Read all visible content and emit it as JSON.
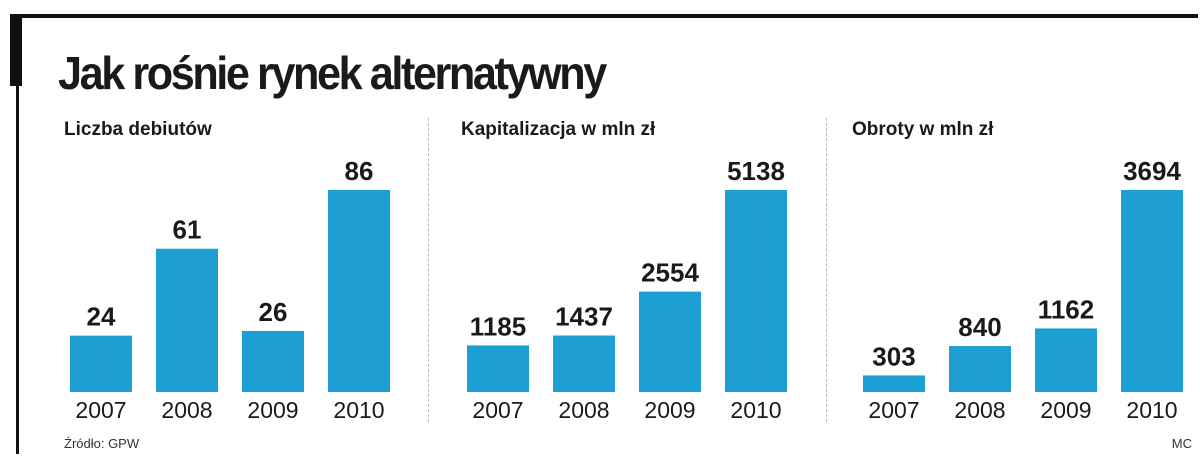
{
  "title": "Jak rośnie rynek alternatywny",
  "colors": {
    "bar": "#1d9fd3",
    "text": "#1a1a1a",
    "frame": "#111111"
  },
  "chart_data": [
    {
      "type": "bar",
      "title": "Liczba debiutów",
      "categories": [
        "2007",
        "2008",
        "2009",
        "2010"
      ],
      "values": [
        24,
        61,
        26,
        86
      ],
      "value_labels": [
        "24",
        "61",
        "26",
        "86"
      ],
      "ylim": [
        0,
        86
      ]
    },
    {
      "type": "bar",
      "title": "Kapitalizacja w mln zł",
      "categories": [
        "2007",
        "2008",
        "2009",
        "2010"
      ],
      "values": [
        1185,
        1437,
        2554,
        5138
      ],
      "value_labels": [
        "1185",
        "1437",
        "2554",
        "5138"
      ],
      "ylim": [
        0,
        5138
      ]
    },
    {
      "type": "bar",
      "title": "Obroty w mln zł",
      "categories": [
        "2007",
        "2008",
        "2009",
        "2010"
      ],
      "values": [
        303,
        840,
        1162,
        3694
      ],
      "value_labels": [
        "303",
        "840",
        "1162",
        "3694"
      ],
      "ylim": [
        0,
        3694
      ]
    }
  ],
  "footer": {
    "source": "Źródło: GPW",
    "author": "MC"
  }
}
